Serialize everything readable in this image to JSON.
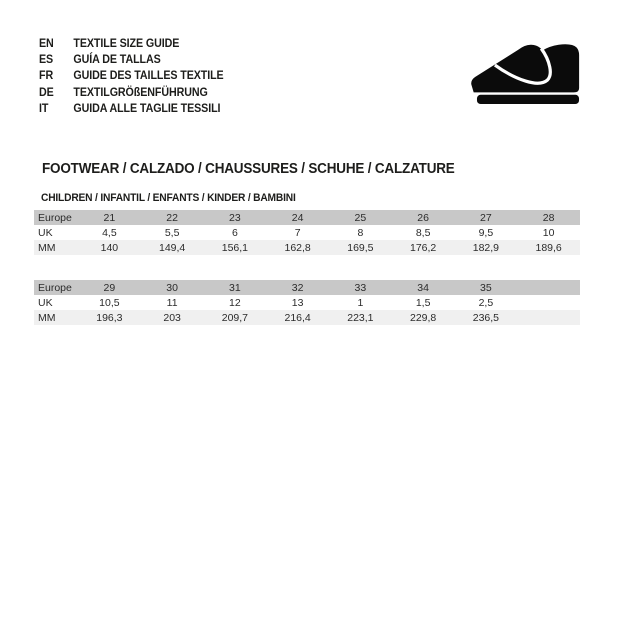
{
  "languages": [
    {
      "code": "EN",
      "label": "TEXTILE SIZE GUIDE"
    },
    {
      "code": "ES",
      "label": "GUÍA DE TALLAS"
    },
    {
      "code": "FR",
      "label": "GUIDE DES TAILLES TEXTILE"
    },
    {
      "code": "DE",
      "label": "TEXTILGRÖßENFÜHRUNG"
    },
    {
      "code": "IT",
      "label": "GUIDA ALLE TAGLIE TESSILI"
    }
  ],
  "icon": {
    "name": "children-shoe-icon",
    "color": "#0b0b0b"
  },
  "section": {
    "title": "FOOTWEAR / CALZADO / CHAUSSURES / SCHUHE / CALZATURE",
    "subtitle": "CHILDREN / INFANTIL / ENFANTS / KINDER / BAMBINI"
  },
  "colors": {
    "header_row_bg": "#c8c8c8",
    "mm_row_bg": "#f0f0f0",
    "text": "#1d1d1b"
  },
  "chart_data": [
    {
      "type": "table",
      "title": "CHILDREN / INFANTIL / ENFANTS / KINDER / BAMBINI (sizes 21-28)",
      "rows": [
        {
          "label": "Europe",
          "values": [
            "21",
            "22",
            "23",
            "24",
            "25",
            "26",
            "27",
            "28"
          ]
        },
        {
          "label": "UK",
          "values": [
            "4,5",
            "5,5",
            "6",
            "7",
            "8",
            "8,5",
            "9,5",
            "10"
          ]
        },
        {
          "label": "MM",
          "values": [
            "140",
            "149,4",
            "156,1",
            "162,8",
            "169,5",
            "176,2",
            "182,9",
            "189,6"
          ]
        }
      ]
    },
    {
      "type": "table",
      "title": "CHILDREN / INFANTIL / ENFANTS / KINDER / BAMBINI (sizes 29-35)",
      "rows": [
        {
          "label": "Europe",
          "values": [
            "29",
            "30",
            "31",
            "32",
            "33",
            "34",
            "35",
            ""
          ]
        },
        {
          "label": "UK",
          "values": [
            "10,5",
            "11",
            "12",
            "13",
            "1",
            "1,5",
            "2,5",
            ""
          ]
        },
        {
          "label": "MM",
          "values": [
            "196,3",
            "203",
            "209,7",
            "216,4",
            "223,1",
            "229,8",
            "236,5",
            ""
          ]
        }
      ]
    }
  ]
}
